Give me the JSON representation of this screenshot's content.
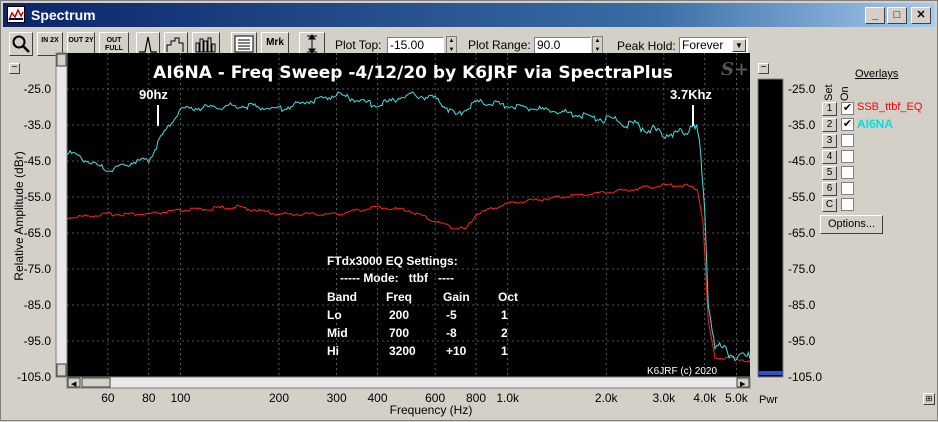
{
  "window": {
    "title": "Spectrum"
  },
  "colors": {
    "trace1": "#ff2020",
    "trace2": "#40e0e0",
    "plot_bg": "#000000",
    "annot": "#ffffff"
  },
  "toolbar": {
    "buttons": [
      {
        "name": "zoom-button",
        "label": "",
        "icon": "magnifier-icon"
      },
      {
        "name": "in-2x-button",
        "label": "IN 2X"
      },
      {
        "name": "out-2y-button",
        "label": "OUT 2Y"
      },
      {
        "name": "out-full-button",
        "label": "OUT FULL"
      },
      {
        "name": "peak-button",
        "label": "",
        "icon": "peak-icon"
      },
      {
        "name": "bars-button",
        "label": "",
        "icon": "bars-icon"
      },
      {
        "name": "bars2-button",
        "label": "",
        "icon": "bars2-icon"
      },
      {
        "name": "list-button",
        "label": "",
        "icon": "list-icon"
      },
      {
        "name": "marker-button",
        "label": "Mrk"
      },
      {
        "name": "vscale-button",
        "label": "",
        "icon": "vscale-icon"
      }
    ],
    "plot_top_label": "Plot Top:",
    "plot_top_value": "-15.00",
    "plot_range_label": "Plot Range:",
    "plot_range_value": "90.0",
    "peak_hold_label": "Peak Hold:",
    "peak_hold_value": "Forever"
  },
  "plot": {
    "title": "AI6NA - Freq Sweep -4/12/20 by K6JRF via SpectraPlus",
    "logo": "S+",
    "marker_left": "90hz",
    "marker_right": "3.7Khz",
    "copyright": "K6JRF (c) 2020",
    "settings": {
      "heading": "FTdx3000 EQ Settings:",
      "mode": "----- Mode:   ttbf   ----",
      "columns": [
        "Band",
        "Freq",
        "Gain",
        "Oct"
      ],
      "rows": [
        [
          "Lo",
          "200",
          "-5",
          "1"
        ],
        [
          "Mid",
          "700",
          "-8",
          "2"
        ],
        [
          "Hi",
          "3200",
          "+10",
          "1"
        ]
      ]
    }
  },
  "chart_data": {
    "type": "line",
    "xlabel": "Frequency (Hz)",
    "ylabel": "Relative Amplitude (dBr)",
    "xscale": "log",
    "xlim": [
      45,
      5500
    ],
    "ylim": [
      -105,
      -15
    ],
    "x_ticks": [
      "60",
      "80",
      "100",
      "200",
      "300",
      "400",
      "600",
      "800",
      "1.0k",
      "2.0k",
      "3.0k",
      "4.0k",
      "5.0k"
    ],
    "y_ticks": [
      "-25.0",
      "-35.0",
      "-45.0",
      "-55.0",
      "-65.0",
      "-75.0",
      "-85.0",
      "-95.0",
      "-105.0"
    ],
    "series": [
      {
        "name": "SSB_ttbf_EQ",
        "color": "#ff2020",
        "x": [
          45,
          60,
          80,
          100,
          150,
          200,
          300,
          400,
          500,
          600,
          700,
          750,
          800,
          1000,
          1500,
          2000,
          3000,
          3500,
          3800,
          3950,
          4100,
          4300,
          5000,
          5500
        ],
        "y": [
          -61,
          -60,
          -60,
          -59,
          -58,
          -60,
          -60,
          -58,
          -59,
          -62,
          -64,
          -64,
          -60,
          -57,
          -55,
          -54,
          -52,
          -52,
          -53,
          -62,
          -90,
          -100,
          -100,
          -101
        ]
      },
      {
        "name": "AI6NA",
        "color": "#40e0e0",
        "x": [
          45,
          60,
          70,
          80,
          90,
          100,
          150,
          200,
          300,
          400,
          500,
          600,
          700,
          800,
          1000,
          1500,
          2000,
          2500,
          3000,
          3500,
          3700,
          3850,
          4000,
          4100,
          4300,
          5000,
          5500
        ],
        "y": [
          -43,
          -48,
          -46,
          -45,
          -37,
          -31,
          -30,
          -31,
          -27,
          -30,
          -27,
          -28,
          -33,
          -29,
          -30,
          -32,
          -34,
          -36,
          -38,
          -38,
          -34,
          -40,
          -60,
          -85,
          -97,
          -100,
          -100
        ]
      }
    ]
  },
  "pwr": {
    "label": "Pwr"
  },
  "overlays": {
    "title": "Overlays",
    "set_label": "Set",
    "on_label": "On",
    "rows": [
      {
        "num": "1",
        "checked": "✔",
        "name": "SSB_ttbf_EQ",
        "color": "#ff0000"
      },
      {
        "num": "2",
        "checked": "✔",
        "name": "AI6NA",
        "color": "#00e0e0"
      },
      {
        "num": "3",
        "checked": "",
        "name": "",
        "color": "#000"
      },
      {
        "num": "4",
        "checked": "",
        "name": "",
        "color": "#000"
      },
      {
        "num": "5",
        "checked": "",
        "name": "",
        "color": "#000"
      },
      {
        "num": "6",
        "checked": "",
        "name": "",
        "color": "#000"
      },
      {
        "num": "C",
        "checked": "",
        "name": "",
        "color": "#000"
      }
    ],
    "options_label": "Options..."
  }
}
